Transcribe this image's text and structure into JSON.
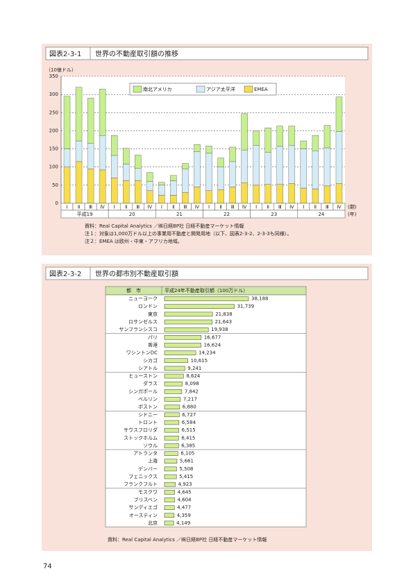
{
  "page_number": "74",
  "chart_data": [
    {
      "type": "stacked-bar",
      "figure_label": "図表2-3-1",
      "title": "世界の不動産取引額の推移",
      "y_label": "（10億ドル）",
      "categories": [
        "Ⅰ",
        "Ⅱ",
        "Ⅲ",
        "Ⅳ",
        "Ⅰ",
        "Ⅱ",
        "Ⅲ",
        "Ⅳ",
        "Ⅰ",
        "Ⅱ",
        "Ⅲ",
        "Ⅳ",
        "Ⅰ",
        "Ⅱ",
        "Ⅲ",
        "Ⅳ",
        "Ⅰ",
        "Ⅱ",
        "Ⅲ",
        "Ⅳ",
        "Ⅰ",
        "Ⅱ",
        "Ⅲ",
        "Ⅳ"
      ],
      "category_unit": "(期)",
      "groups": [
        "平成19",
        "20",
        "21",
        "22",
        "23",
        "24"
      ],
      "group_unit": "(年)",
      "series": [
        {
          "name": "EMEA",
          "color": "#f7dd4a",
          "values": [
            100,
            115,
            95,
            92,
            70,
            63,
            63,
            35,
            22,
            22,
            30,
            45,
            35,
            38,
            45,
            57,
            50,
            52,
            52,
            55,
            42,
            40,
            48,
            55
          ]
        },
        {
          "name": "アジア太平洋",
          "color": "#d5ecf7",
          "values": [
            50,
            57,
            70,
            95,
            62,
            45,
            33,
            25,
            28,
            40,
            65,
            97,
            103,
            62,
            70,
            90,
            110,
            88,
            105,
            105,
            108,
            105,
            105,
            143
          ]
        },
        {
          "name": "南北アメリカ",
          "color": "#c6ef8e",
          "values": [
            145,
            148,
            125,
            128,
            55,
            44,
            37,
            25,
            8,
            15,
            15,
            20,
            20,
            25,
            40,
            100,
            40,
            68,
            56,
            53,
            22,
            42,
            62,
            95
          ]
        }
      ],
      "ylim": [
        0,
        350
      ],
      "yticks": [
        0,
        50,
        100,
        150,
        200,
        250,
        300,
        350
      ],
      "grid": true,
      "notes": [
        "資料：Real Capital Analytics ／㈱日経BP社 日経不動産マーケット情報",
        "注１：対象は1,000万ドル以上の事業用不動産と開発用地（以下、図表2-3-2、2-3-3も同様）。",
        "注２：EMEA は欧州・中東・アフリカ地域。"
      ]
    },
    {
      "type": "hbar",
      "figure_label": "図表2-3-2",
      "title": "世界の都市別不動産取引額",
      "category_header": "都　市",
      "value_header": "平成24年不動産取引額（100万ドル）",
      "color": "#d3ef8c",
      "categories": [
        "ニューヨーク",
        "ロンドン",
        "東京",
        "ロサンゼルス",
        "サンフランシスコ",
        "パリ",
        "香港",
        "ワシントンDC",
        "シカゴ",
        "シアトル",
        "ヒューストン",
        "ダラス",
        "シンガポール",
        "ベルリン",
        "ボストン",
        "シドニー",
        "トロント",
        "サウスフロリダ",
        "ストックホルム",
        "ソウル",
        "アトランタ",
        "上海",
        "デンバー",
        "フェニックス",
        "フランクフルト",
        "モスクワ",
        "ブリスベン",
        "サンディエゴ",
        "オースティン",
        "北京"
      ],
      "values": [
        38188,
        31739,
        21838,
        21643,
        19938,
        16677,
        16624,
        14234,
        10615,
        9241,
        8624,
        8098,
        7842,
        7217,
        6880,
        6727,
        6584,
        6515,
        6415,
        6385,
        6105,
        5661,
        5508,
        5415,
        4923,
        4645,
        4604,
        4477,
        4359,
        4149
      ],
      "value_labels": [
        "38,188",
        "31,739",
        "21,838",
        "21,643",
        "19,938",
        "16,677",
        "16,624",
        "14,234",
        "10,615",
        "9,241",
        "8,624",
        "8,098",
        "7,842",
        "7,217",
        "6,880",
        "6,727",
        "6,584",
        "6,515",
        "6,415",
        "6,385",
        "6,105",
        "5,661",
        "5,508",
        "5,415",
        "4,923",
        "4,645",
        "4,604",
        "4,477",
        "4,359",
        "4,149"
      ],
      "source": "資料：Real Capital Analytics ／㈱日経BP社 日経不動産マーケット情報"
    }
  ]
}
